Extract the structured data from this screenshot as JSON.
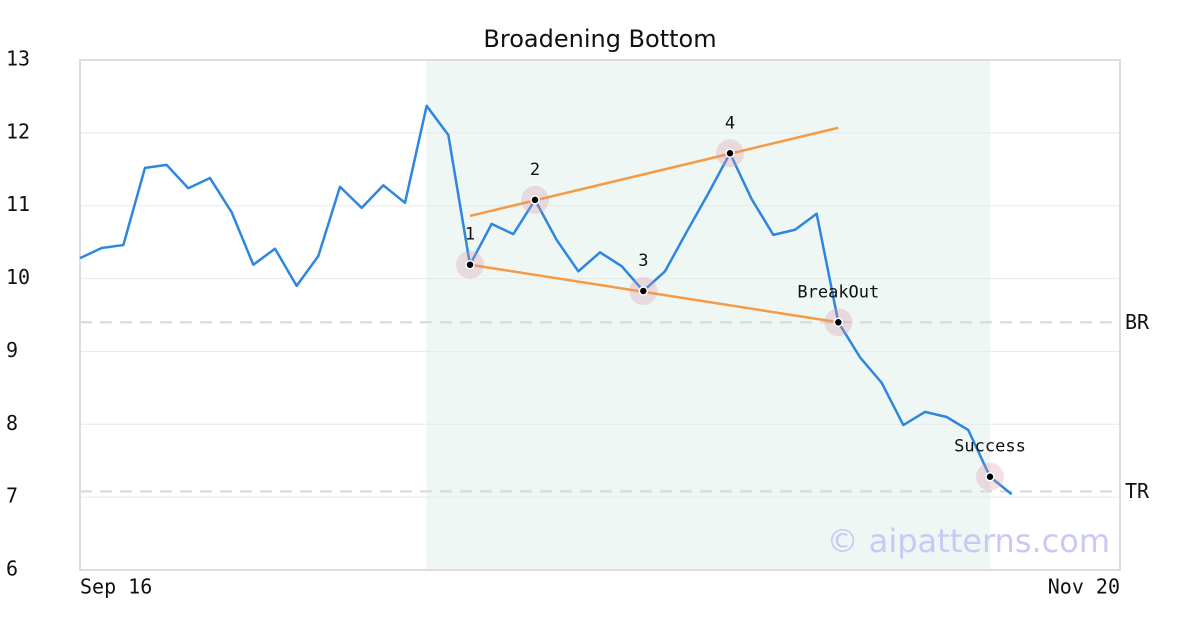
{
  "chart_data": {
    "type": "line",
    "title": "Broadening Bottom",
    "x": [
      0,
      1,
      2,
      3,
      4,
      5,
      6,
      7,
      8,
      9,
      10,
      11,
      12,
      13,
      14,
      15,
      16,
      17,
      18,
      19,
      20,
      21,
      22,
      23,
      24,
      25,
      26,
      27,
      28,
      29,
      30,
      31,
      32,
      33,
      34,
      35,
      36,
      37,
      38,
      39,
      40,
      41,
      42,
      43
    ],
    "values": [
      10.28,
      10.42,
      10.46,
      11.52,
      11.56,
      11.24,
      11.38,
      10.91,
      10.19,
      10.41,
      9.9,
      10.31,
      11.26,
      10.97,
      11.28,
      11.04,
      12.37,
      11.97,
      10.19,
      10.75,
      10.61,
      11.08,
      10.53,
      10.1,
      10.36,
      10.17,
      9.83,
      10.1,
      10.64,
      11.17,
      11.72,
      11.09,
      10.6,
      10.67,
      10.89,
      9.4,
      8.92,
      8.57,
      7.99,
      8.17,
      8.1,
      7.92,
      7.28,
      7.04
    ],
    "color": "#2e86de",
    "xlim": [
      0,
      48
    ],
    "xticks": [
      {
        "value": 0,
        "label": "Sep 16"
      },
      {
        "value": 48,
        "label": "Nov 20"
      }
    ],
    "ylim": [
      6,
      13
    ],
    "yticks": [
      6,
      7,
      8,
      9,
      10,
      11,
      12,
      13
    ],
    "grid": true,
    "shaded_region": {
      "x": [
        16,
        42
      ],
      "color": "#eef7f3"
    },
    "trendlines": [
      {
        "x": [
          18,
          35
        ],
        "y": [
          10.86,
          12.07
        ],
        "color": "#f59a45"
      },
      {
        "x": [
          18,
          35
        ],
        "y": [
          10.19,
          9.4
        ],
        "color": "#f59a45"
      }
    ],
    "annotations": [
      {
        "label": "1",
        "x": 18,
        "y": 10.19
      },
      {
        "label": "2",
        "x": 21,
        "y": 11.08
      },
      {
        "label": "3",
        "x": 26,
        "y": 9.83
      },
      {
        "label": "4",
        "x": 30,
        "y": 11.72
      },
      {
        "label": "BreakOut",
        "x": 35,
        "y": 9.4
      },
      {
        "label": "Success",
        "x": 42,
        "y": 7.28
      }
    ],
    "hlines": [
      {
        "label": "BR",
        "value": 9.4
      },
      {
        "label": "TR",
        "value": 7.08
      }
    ],
    "watermark": "© aipatterns.com"
  }
}
